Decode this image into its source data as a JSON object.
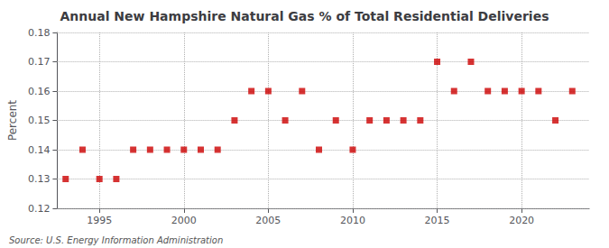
{
  "chart_data": {
    "type": "scatter",
    "title": "Annual New Hampshire Natural Gas % of Total Residential Deliveries",
    "ylabel": "Percent",
    "annotations": [
      "Source: U.S. Energy Information Administration"
    ],
    "x": [
      1993,
      1994,
      1995,
      1996,
      1997,
      1998,
      1999,
      2000,
      2001,
      2002,
      2003,
      2004,
      2005,
      2006,
      2007,
      2008,
      2009,
      2010,
      2011,
      2012,
      2013,
      2014,
      2015,
      2016,
      2017,
      2018,
      2019,
      2020,
      2021,
      2022,
      2023
    ],
    "values": [
      0.13,
      0.14,
      0.13,
      0.13,
      0.14,
      0.14,
      0.14,
      0.14,
      0.14,
      0.14,
      0.15,
      0.16,
      0.16,
      0.15,
      0.16,
      0.14,
      0.15,
      0.14,
      0.15,
      0.15,
      0.15,
      0.15,
      0.17,
      0.16,
      0.17,
      0.16,
      0.16,
      0.16,
      0.16,
      0.15,
      0.16
    ],
    "color": "#cc0000",
    "marker": "square",
    "xlim": [
      1992.5,
      2024.0
    ],
    "xticks": [
      1995,
      2000,
      2005,
      2010,
      2015,
      2020
    ],
    "ylim": [
      0.12,
      0.18
    ],
    "yticks": [
      0.12,
      0.13,
      0.14,
      0.15,
      0.16,
      0.17,
      0.18
    ],
    "grid": true
  }
}
